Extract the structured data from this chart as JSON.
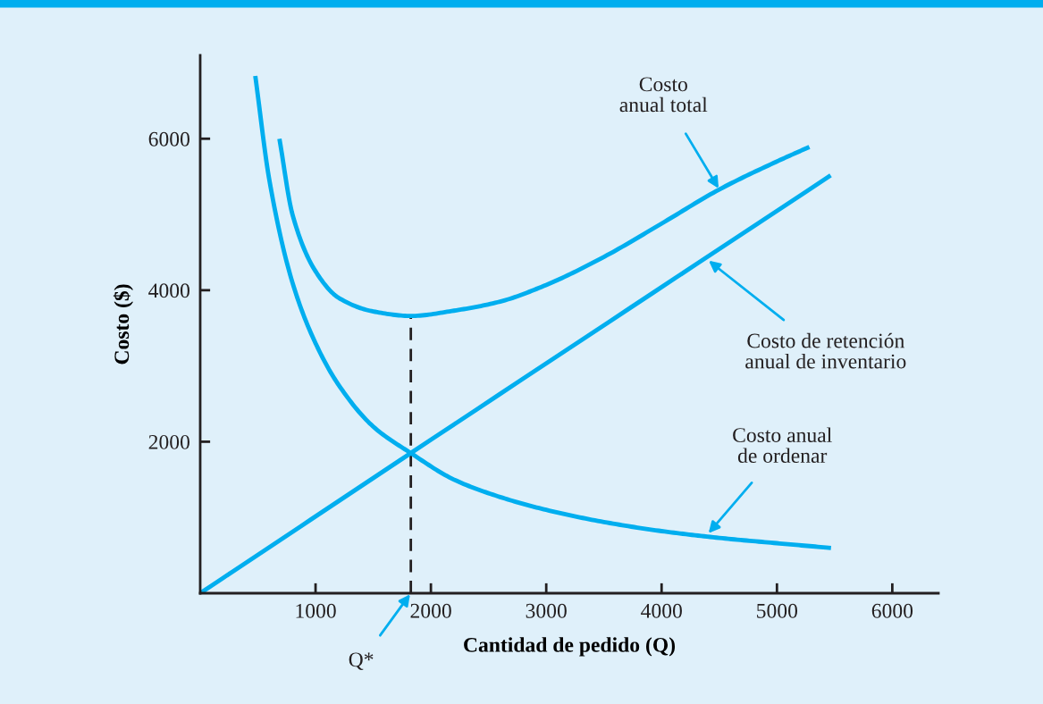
{
  "chart_data": {
    "type": "line",
    "xlabel": "Cantidad de pedido (Q)",
    "ylabel": "Costo ($)",
    "xlim": [
      0,
      6400
    ],
    "ylim": [
      0,
      7100
    ],
    "xticks": [
      1000,
      2000,
      3000,
      4000,
      5000,
      6000
    ],
    "yticks": [
      2000,
      4000,
      6000
    ],
    "grid": false,
    "legend": false,
    "marker": "none",
    "line_style": "solid",
    "series": [
      {
        "color": "#00aeef",
        "x": [
          480,
          600,
          800,
          1000,
          1200,
          1500,
          1826,
          2200,
          2600,
          3000,
          3500,
          4000,
          4500,
          5000,
          5450
        ],
        "values": [
          6800,
          5450,
          4100,
          3300,
          2750,
          2200,
          1850,
          1500,
          1270,
          1100,
          940,
          820,
          730,
          660,
          600
        ]
      },
      {
        "color": "#00aeef",
        "x": [
          0,
          1826,
          5450
        ],
        "values": [
          0,
          1850,
          5500
        ]
      },
      {
        "color": "#00aeef",
        "x": [
          690,
          800,
          1000,
          1200,
          1500,
          1826,
          2200,
          2600,
          3000,
          3500,
          4000,
          4500,
          5000,
          5264
        ],
        "values": [
          5970,
          5000,
          4250,
          3900,
          3720,
          3660,
          3730,
          3850,
          4070,
          4440,
          4880,
          5330,
          5700,
          5880
        ]
      }
    ],
    "ref_lines": [
      {
        "axis": "x",
        "value": 1826,
        "color": "#231f20",
        "line_style": "dashed"
      }
    ],
    "annotations": [
      {
        "text": "Costo\nanual total",
        "x": 4500,
        "y": 5330
      },
      {
        "text": "Costo de retención\nanual de inventario",
        "x": 4400,
        "y": 4400
      },
      {
        "text": "Costo anual\nde ordenar",
        "x": 4400,
        "y": 780
      },
      {
        "text": "Q*",
        "x": 1826,
        "y": 0
      }
    ]
  }
}
